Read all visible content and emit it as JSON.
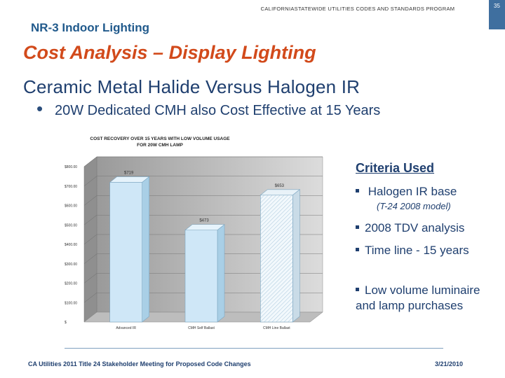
{
  "header": {
    "program": "CALIFORNIASTATEWIDE UTILITIES CODES AND STANDARDS PROGRAM",
    "slide_number": "35"
  },
  "section_title": "NR-3 Indoor Lighting",
  "main_title": "Cost Analysis – Display Lighting",
  "subtitle": "Ceramic Metal Halide Versus Halogen IR",
  "bullet": "20W Dedicated CMH also Cost Effective at 15 Years",
  "criteria": {
    "title": "Criteria Used",
    "items": [
      {
        "text": "Halogen IR base",
        "sub": "(T-24 2008 model)"
      },
      {
        "text": "2008 TDV analysis"
      },
      {
        "text": "Time line - 15 years"
      },
      {
        "text": "Low volume luminaire and lamp purchases"
      }
    ]
  },
  "chart_data": {
    "type": "bar",
    "title": "COST RECOVERY OVER 15 YEARS WITH LOW VOLUME USAGE FOR 20W CMH LAMP",
    "categories": [
      "Advanced IR",
      "CMH Self Ballast",
      "CMH Line Ballast"
    ],
    "values": [
      719,
      473,
      653
    ],
    "data_labels": [
      "$719",
      "$473",
      "$653"
    ],
    "y_ticks": [
      "$",
      "$100.00",
      "$200.00",
      "$300.00",
      "$400.00",
      "$500.00",
      "$600.00",
      "$700.00",
      "$800.00"
    ],
    "ylim": [
      0,
      800
    ],
    "grid": true,
    "style": "3d-column"
  },
  "footer": {
    "left": "CA Utilities 2011 Title 24 Stakeholder Meeting for Proposed Code Changes",
    "right": "3/21/2010"
  },
  "colors": {
    "accent": "#d24a1b",
    "navy": "#1f3f6f",
    "bar_fill": "#cfe7f7"
  }
}
